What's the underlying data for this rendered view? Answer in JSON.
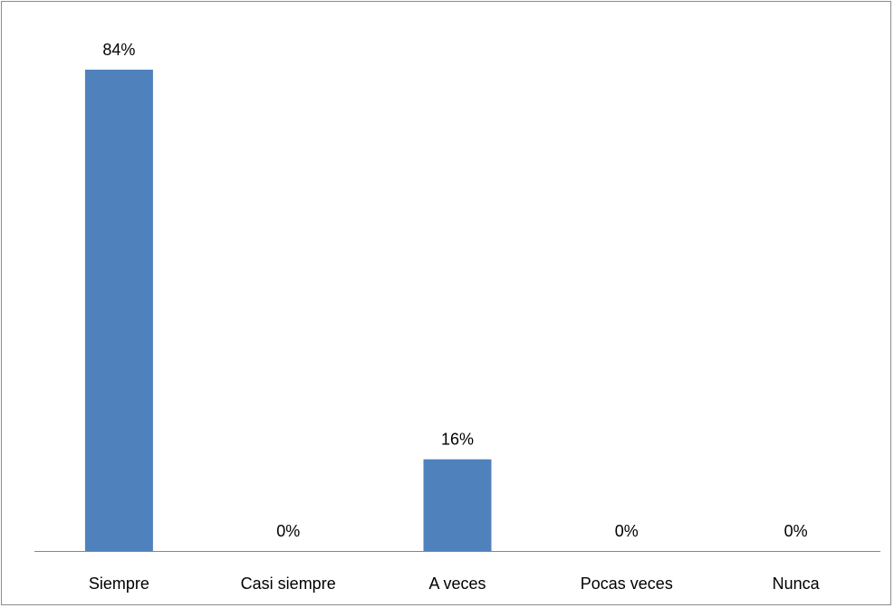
{
  "chart_data": {
    "type": "bar",
    "categories": [
      "Siempre",
      "Casi siempre",
      "A veces",
      "Pocas veces",
      "Nunca"
    ],
    "values": [
      84,
      0,
      16,
      0,
      0
    ],
    "data_labels": [
      "84%",
      "0%",
      "16%",
      "0%",
      "0%"
    ],
    "ylim": [
      0,
      100
    ],
    "bar_color": "#4f81bd",
    "axis_color": "#868686",
    "grid": false,
    "legend": "none"
  }
}
